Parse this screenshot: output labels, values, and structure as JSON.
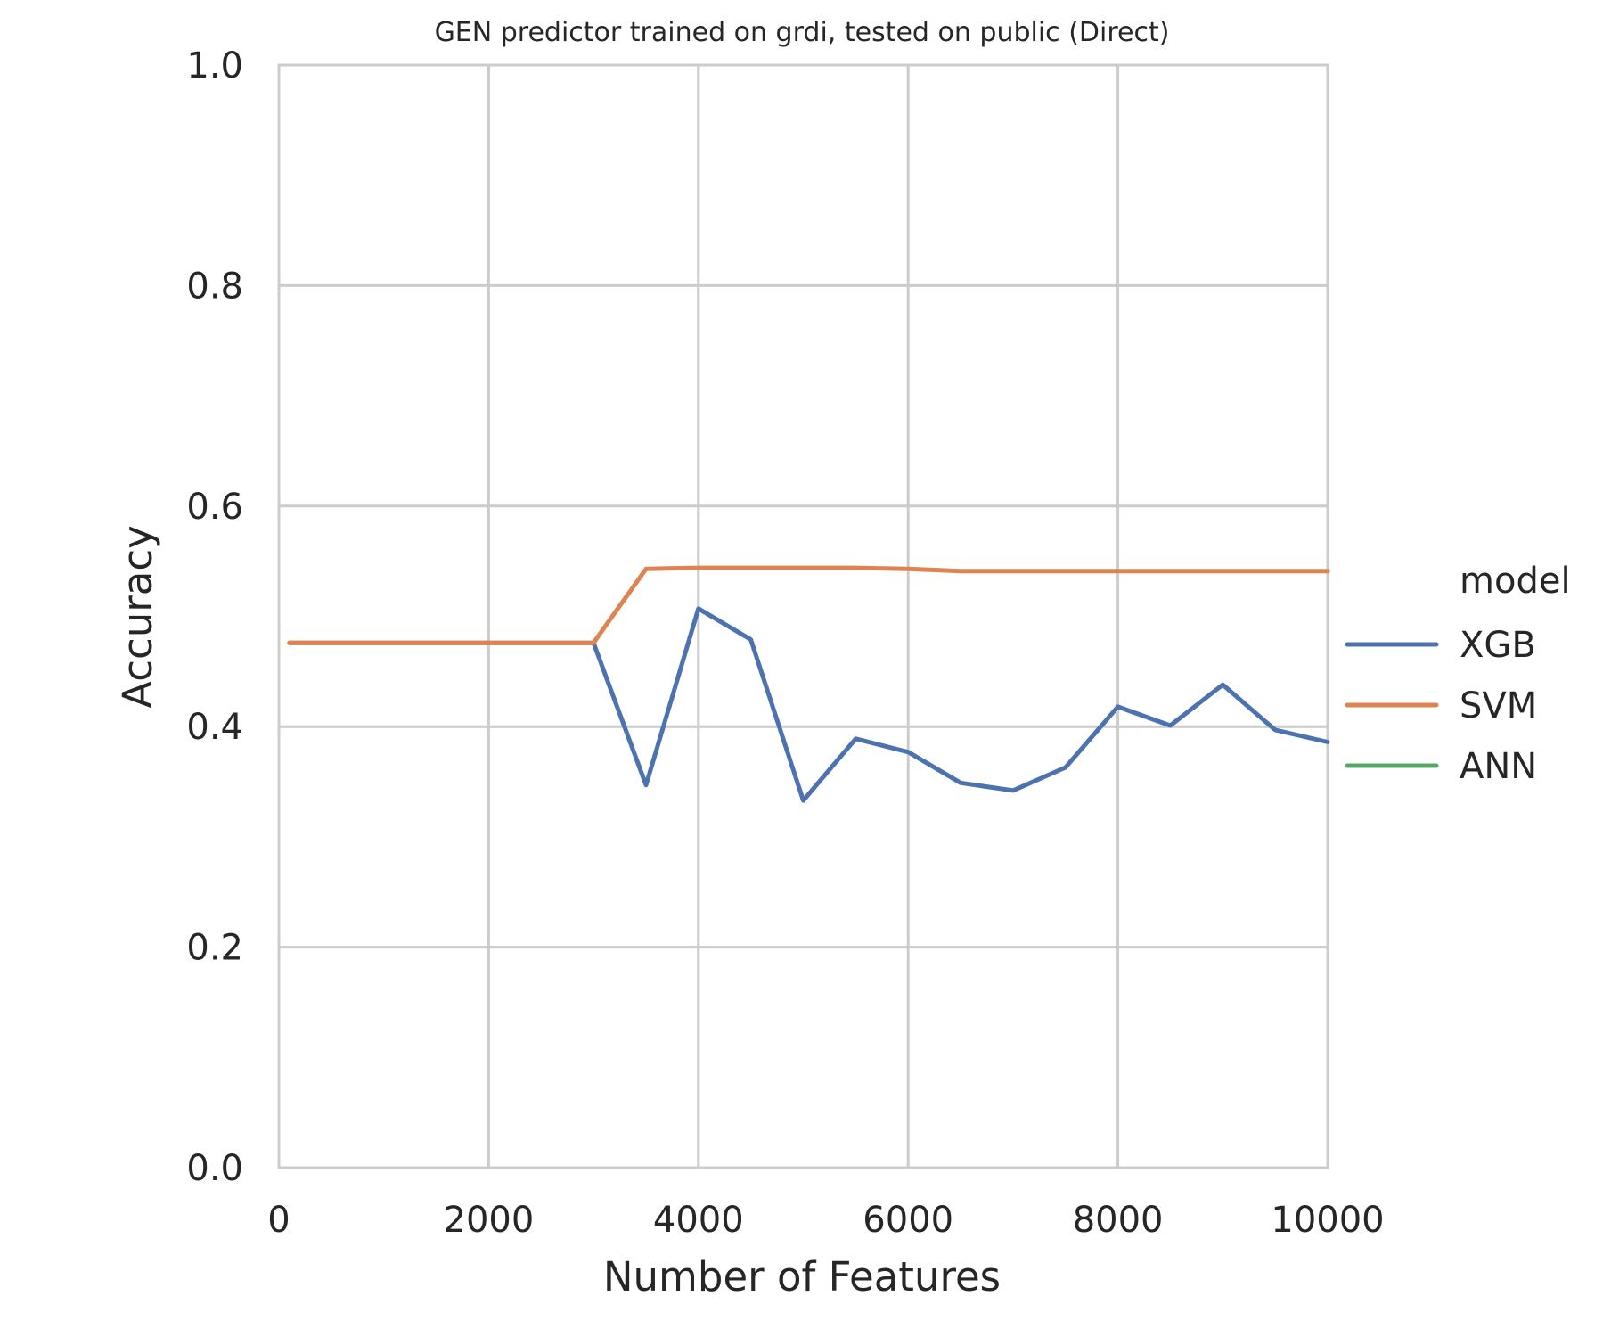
{
  "chart_data": {
    "type": "line",
    "title": "GEN predictor trained on grdi, tested on public (Direct)",
    "xlabel": "Number of Features",
    "ylabel": "Accuracy",
    "xlim": [
      0,
      10000
    ],
    "ylim": [
      0.0,
      1.0
    ],
    "xticks": [
      0,
      2000,
      4000,
      6000,
      8000,
      10000
    ],
    "xtick_labels": [
      "0",
      "2000",
      "4000",
      "6000",
      "8000",
      "10000"
    ],
    "yticks": [
      0.0,
      0.2,
      0.4,
      0.6,
      0.8,
      1.0
    ],
    "ytick_labels": [
      "0.0",
      "0.2",
      "0.4",
      "0.6",
      "0.8",
      "1.0"
    ],
    "grid": true,
    "legend": {
      "title": "model",
      "position": "right"
    },
    "series": [
      {
        "name": "XGB",
        "color": "#4c72b0",
        "x": [
          100,
          500,
          1000,
          1500,
          2000,
          2500,
          3000,
          3500,
          4000,
          4500,
          5000,
          5500,
          6000,
          6500,
          7000,
          7500,
          8000,
          8500,
          9000,
          9500,
          10000
        ],
        "y": [
          0.476,
          0.476,
          0.476,
          0.476,
          0.476,
          0.476,
          0.476,
          0.347,
          0.507,
          0.479,
          0.333,
          0.389,
          0.377,
          0.349,
          0.342,
          0.363,
          0.418,
          0.401,
          0.438,
          0.397,
          0.386
        ]
      },
      {
        "name": "SVM",
        "color": "#dd8452",
        "x": [
          100,
          500,
          1000,
          1500,
          2000,
          2500,
          3000,
          3500,
          4000,
          4500,
          5000,
          5500,
          6000,
          6500,
          7000,
          7500,
          8000,
          8500,
          9000,
          9500,
          10000
        ],
        "y": [
          0.476,
          0.476,
          0.476,
          0.476,
          0.476,
          0.476,
          0.476,
          0.543,
          0.544,
          0.544,
          0.544,
          0.544,
          0.543,
          0.541,
          0.541,
          0.541,
          0.541,
          0.541,
          0.541,
          0.541,
          0.541
        ]
      },
      {
        "name": "ANN",
        "color": "#55a868",
        "x": [],
        "y": []
      }
    ]
  }
}
